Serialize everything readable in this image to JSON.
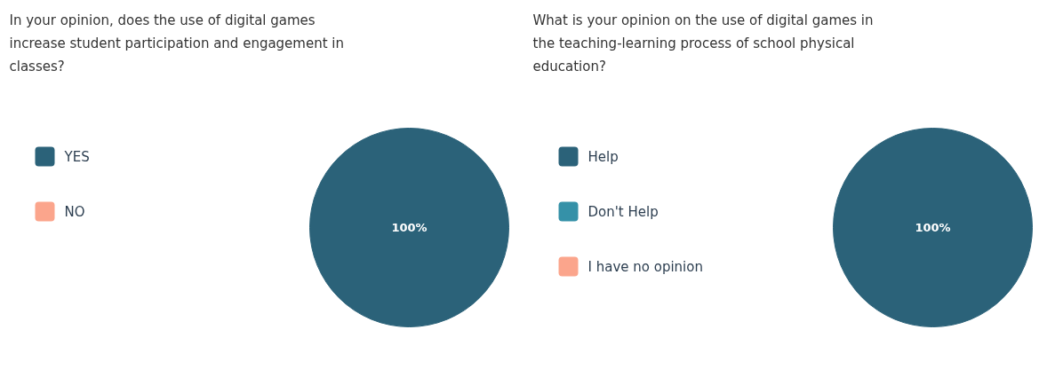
{
  "chart_data": [
    {
      "type": "pie",
      "title": "In your opinion, does the use of digital games increase student participation and engagement in classes?",
      "categories": [
        "YES",
        "NO"
      ],
      "values": [
        100,
        0
      ],
      "colors": [
        "#2b6279",
        "#fba58c"
      ],
      "value_labels": [
        "100%",
        null
      ],
      "legend": "left"
    },
    {
      "type": "pie",
      "title": "What is your opinion on the use of digital games in the teaching-learning process of school physical education?",
      "categories": [
        "Help",
        "Don't Help",
        "I have no opinion"
      ],
      "values": [
        100,
        0,
        0
      ],
      "colors": [
        "#2b6279",
        "#3591a8",
        "#fba58c"
      ],
      "value_labels": [
        "100%",
        null,
        null
      ],
      "legend": "left"
    }
  ]
}
